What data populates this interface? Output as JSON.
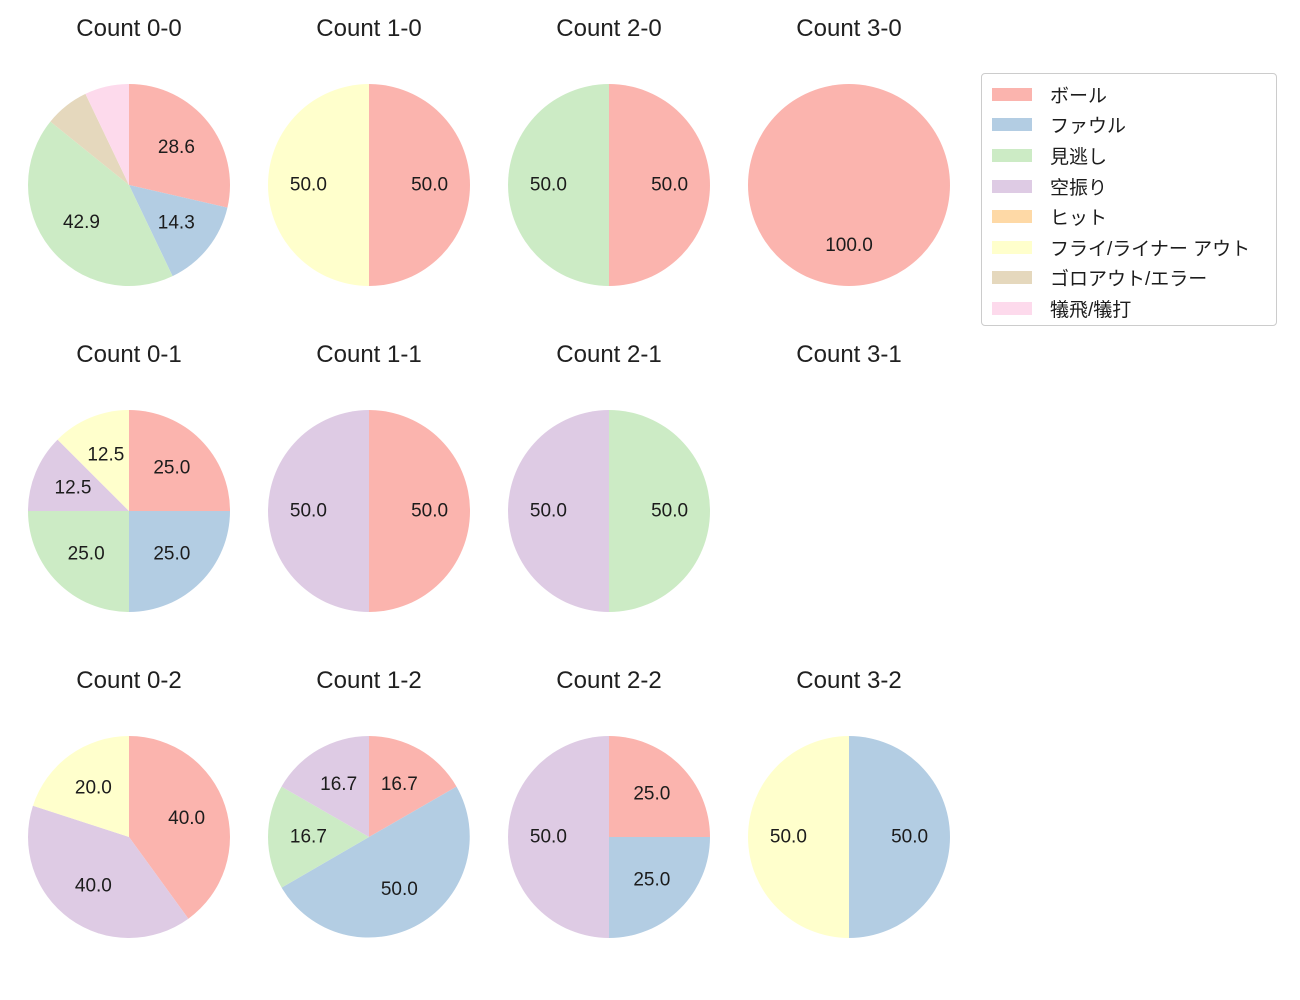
{
  "figure": {
    "background": "#ffffff"
  },
  "legend": {
    "position": "upper-right",
    "items": [
      {
        "key": "ball",
        "label": "ボール",
        "color": "#fbb4ae"
      },
      {
        "key": "foul",
        "label": "ファウル",
        "color": "#b3cde3"
      },
      {
        "key": "called-strike",
        "label": "見逃し",
        "color": "#ccebc5"
      },
      {
        "key": "swinging-strike",
        "label": "空振り",
        "color": "#decbe4"
      },
      {
        "key": "hit",
        "label": "ヒット",
        "color": "#fed9a6"
      },
      {
        "key": "fly-liner-out",
        "label": "フライ/ライナー アウト",
        "color": "#ffffcc"
      },
      {
        "key": "ground-out-error",
        "label": "ゴロアウト/エラー",
        "color": "#e5d8bd"
      },
      {
        "key": "sac-fly-sac-bunt",
        "label": "犠飛/犠打",
        "color": "#fddaec"
      }
    ]
  },
  "chart_data": [
    {
      "type": "pie",
      "title": "Count 0-0",
      "unit": "percent",
      "start_angle_deg": 90,
      "direction": "clockwise",
      "slices": [
        {
          "category": "ball",
          "value": 28.6,
          "label": "28.6"
        },
        {
          "category": "foul",
          "value": 14.3,
          "label": "14.3"
        },
        {
          "category": "called-strike",
          "value": 42.9,
          "label": "42.9"
        },
        {
          "category": "ground-out-error",
          "value": 7.1,
          "label": ""
        },
        {
          "category": "sac-fly-sac-bunt",
          "value": 7.1,
          "label": ""
        }
      ]
    },
    {
      "type": "pie",
      "title": "Count 1-0",
      "unit": "percent",
      "start_angle_deg": 90,
      "direction": "clockwise",
      "slices": [
        {
          "category": "ball",
          "value": 50.0,
          "label": "50.0"
        },
        {
          "category": "fly-liner-out",
          "value": 50.0,
          "label": "50.0"
        }
      ]
    },
    {
      "type": "pie",
      "title": "Count 2-0",
      "unit": "percent",
      "start_angle_deg": 90,
      "direction": "clockwise",
      "slices": [
        {
          "category": "ball",
          "value": 50.0,
          "label": "50.0"
        },
        {
          "category": "called-strike",
          "value": 50.0,
          "label": "50.0"
        }
      ]
    },
    {
      "type": "pie",
      "title": "Count 3-0",
      "unit": "percent",
      "start_angle_deg": 90,
      "direction": "clockwise",
      "slices": [
        {
          "category": "ball",
          "value": 100.0,
          "label": "100.0"
        }
      ]
    },
    {
      "type": "pie",
      "title": "Count 0-1",
      "unit": "percent",
      "start_angle_deg": 90,
      "direction": "clockwise",
      "slices": [
        {
          "category": "ball",
          "value": 25.0,
          "label": "25.0"
        },
        {
          "category": "foul",
          "value": 25.0,
          "label": "25.0"
        },
        {
          "category": "called-strike",
          "value": 25.0,
          "label": "25.0"
        },
        {
          "category": "swinging-strike",
          "value": 12.5,
          "label": "12.5"
        },
        {
          "category": "fly-liner-out",
          "value": 12.5,
          "label": "12.5"
        }
      ]
    },
    {
      "type": "pie",
      "title": "Count 1-1",
      "unit": "percent",
      "start_angle_deg": 90,
      "direction": "clockwise",
      "slices": [
        {
          "category": "ball",
          "value": 50.0,
          "label": "50.0"
        },
        {
          "category": "swinging-strike",
          "value": 50.0,
          "label": "50.0"
        }
      ]
    },
    {
      "type": "pie",
      "title": "Count 2-1",
      "unit": "percent",
      "start_angle_deg": 90,
      "direction": "clockwise",
      "slices": [
        {
          "category": "called-strike",
          "value": 50.0,
          "label": "50.0"
        },
        {
          "category": "swinging-strike",
          "value": 50.0,
          "label": "50.0"
        }
      ]
    },
    {
      "type": "pie",
      "title": "Count 3-1",
      "unit": "percent",
      "start_angle_deg": 90,
      "direction": "clockwise",
      "slices": []
    },
    {
      "type": "pie",
      "title": "Count 0-2",
      "unit": "percent",
      "start_angle_deg": 90,
      "direction": "clockwise",
      "slices": [
        {
          "category": "ball",
          "value": 40.0,
          "label": "40.0"
        },
        {
          "category": "swinging-strike",
          "value": 40.0,
          "label": "40.0"
        },
        {
          "category": "fly-liner-out",
          "value": 20.0,
          "label": "20.0"
        }
      ]
    },
    {
      "type": "pie",
      "title": "Count 1-2",
      "unit": "percent",
      "start_angle_deg": 90,
      "direction": "clockwise",
      "slices": [
        {
          "category": "ball",
          "value": 16.7,
          "label": "16.7"
        },
        {
          "category": "foul",
          "value": 50.0,
          "label": "50.0"
        },
        {
          "category": "called-strike",
          "value": 16.7,
          "label": "16.7"
        },
        {
          "category": "swinging-strike",
          "value": 16.7,
          "label": "16.7"
        }
      ]
    },
    {
      "type": "pie",
      "title": "Count 2-2",
      "unit": "percent",
      "start_angle_deg": 90,
      "direction": "clockwise",
      "slices": [
        {
          "category": "ball",
          "value": 25.0,
          "label": "25.0"
        },
        {
          "category": "foul",
          "value": 25.0,
          "label": "25.0"
        },
        {
          "category": "swinging-strike",
          "value": 50.0,
          "label": "50.0"
        }
      ]
    },
    {
      "type": "pie",
      "title": "Count 3-2",
      "unit": "percent",
      "start_angle_deg": 90,
      "direction": "clockwise",
      "slices": [
        {
          "category": "foul",
          "value": 50.0,
          "label": "50.0"
        },
        {
          "category": "fly-liner-out",
          "value": 50.0,
          "label": "50.0"
        }
      ]
    }
  ]
}
